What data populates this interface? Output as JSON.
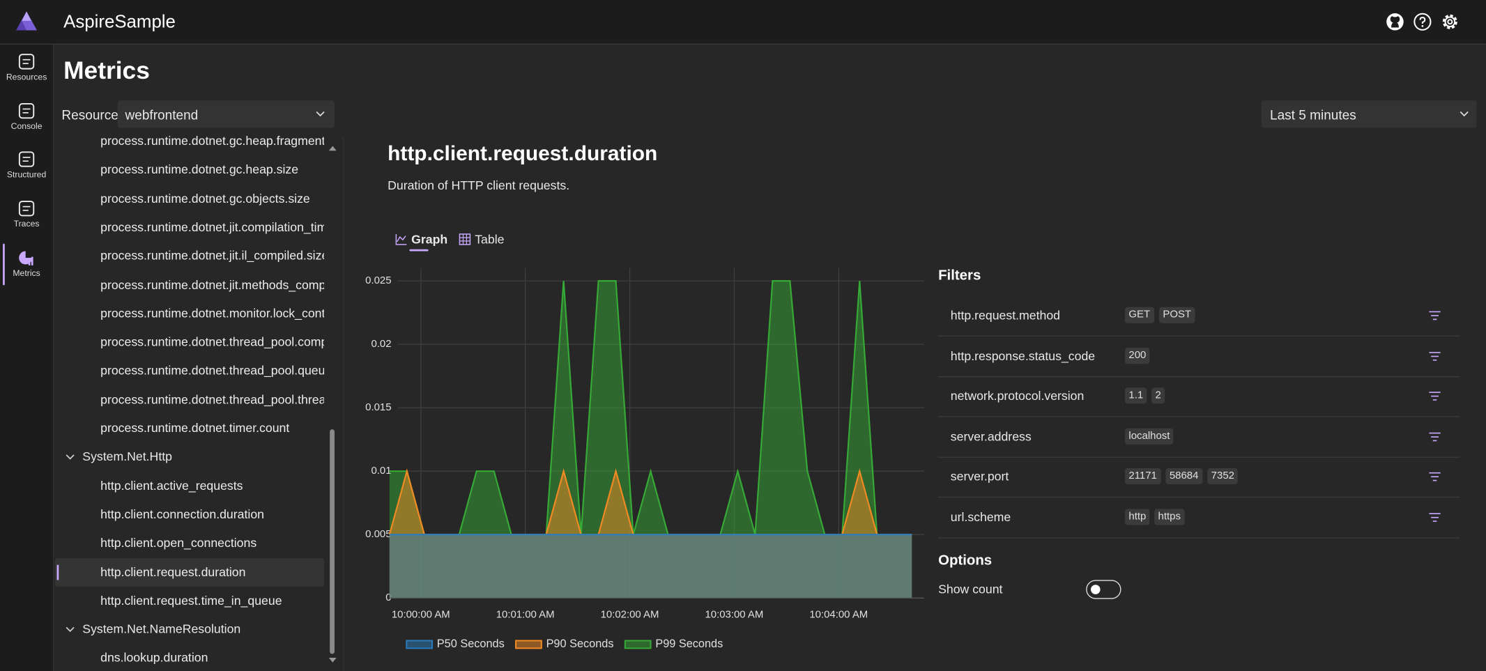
{
  "header": {
    "app_name": "AspireSample"
  },
  "nav": [
    {
      "label": "Resources"
    },
    {
      "label": "Console"
    },
    {
      "label": "Structured"
    },
    {
      "label": "Traces"
    },
    {
      "label": "Metrics",
      "active": true
    }
  ],
  "page_title": "Metrics",
  "resource": {
    "label": "Resource",
    "value": "webfrontend"
  },
  "time_range": "Last 5 minutes",
  "metrics_tree": [
    {
      "items": [
        {
          "text": "process.runtime.dotnet.gc.heap.fragmenta"
        },
        {
          "text": "process.runtime.dotnet.gc.heap.size"
        },
        {
          "text": "process.runtime.dotnet.gc.objects.size"
        },
        {
          "text": "process.runtime.dotnet.jit.compilation_tim"
        },
        {
          "text": "process.runtime.dotnet.jit.il_compiled.size"
        },
        {
          "text": "process.runtime.dotnet.jit.methods_compi"
        },
        {
          "text": "process.runtime.dotnet.monitor.lock_cont"
        },
        {
          "text": "process.runtime.dotnet.thread_pool.comp"
        },
        {
          "text": "process.runtime.dotnet.thread_pool.queu"
        },
        {
          "text": "process.runtime.dotnet.thread_pool.threa"
        },
        {
          "text": "process.runtime.dotnet.timer.count"
        }
      ]
    },
    {
      "name": "System.Net.Http",
      "items": [
        {
          "text": "http.client.active_requests"
        },
        {
          "text": "http.client.connection.duration"
        },
        {
          "text": "http.client.open_connections"
        },
        {
          "text": "http.client.request.duration",
          "selected": true
        },
        {
          "text": "http.client.request.time_in_queue"
        }
      ]
    },
    {
      "name": "System.Net.NameResolution",
      "items": [
        {
          "text": "dns.lookup.duration"
        }
      ]
    }
  ],
  "tabs": [
    {
      "label": "Graph",
      "active": true
    },
    {
      "label": "Table"
    }
  ],
  "chart_data": {
    "type": "area",
    "title": "http.client.request.duration",
    "subtitle": "Duration of HTTP client requests.",
    "x": [
      "9:59:42 AM",
      "9:59:52 AM",
      "10:00:02 AM",
      "10:00:12 AM",
      "10:00:22 AM",
      "10:00:32 AM",
      "10:00:42 AM",
      "10:00:52 AM",
      "10:01:02 AM",
      "10:01:12 AM",
      "10:01:22 AM",
      "10:01:32 AM",
      "10:01:42 AM",
      "10:01:52 AM",
      "10:02:02 AM",
      "10:02:12 AM",
      "10:02:22 AM",
      "10:02:32 AM",
      "10:02:42 AM",
      "10:02:52 AM",
      "10:03:02 AM",
      "10:03:12 AM",
      "10:03:22 AM",
      "10:03:32 AM",
      "10:03:42 AM",
      "10:03:52 AM",
      "10:04:02 AM",
      "10:04:12 AM",
      "10:04:22 AM",
      "10:04:32 AM",
      "10:04:42 AM"
    ],
    "series": [
      {
        "name": "P99 Seconds",
        "color": "#36a936",
        "values": [
          0.01,
          0.01,
          0.005,
          0.005,
          0.005,
          0.01,
          0.01,
          0.005,
          0.005,
          0.005,
          0.025,
          0.005,
          0.025,
          0.025,
          0.005,
          0.01,
          0.005,
          0.005,
          0.005,
          0.005,
          0.01,
          0.005,
          0.025,
          0.025,
          0.01,
          0.005,
          0.005,
          0.025,
          0.005,
          0.005,
          0.005
        ]
      },
      {
        "name": "P90 Seconds",
        "color": "#f28a24",
        "values": [
          0.005,
          0.01,
          0.005,
          0.005,
          0.005,
          0.005,
          0.005,
          0.005,
          0.005,
          0.005,
          0.01,
          0.005,
          0.005,
          0.01,
          0.005,
          0.005,
          0.005,
          0.005,
          0.005,
          0.005,
          0.005,
          0.005,
          0.005,
          0.005,
          0.005,
          0.005,
          0.005,
          0.01,
          0.005,
          0.005,
          0.005
        ]
      },
      {
        "name": "P50 Seconds",
        "color": "#2b7bba",
        "values": [
          0.005,
          0.005,
          0.005,
          0.005,
          0.005,
          0.005,
          0.005,
          0.005,
          0.005,
          0.005,
          0.005,
          0.005,
          0.005,
          0.005,
          0.005,
          0.005,
          0.005,
          0.005,
          0.005,
          0.005,
          0.005,
          0.005,
          0.005,
          0.005,
          0.005,
          0.005,
          0.005,
          0.005,
          0.005,
          0.005,
          0.005
        ]
      }
    ],
    "legend_order": [
      2,
      1,
      0
    ],
    "xlim": [
      "9:59:42 AM",
      "10:04:49 AM"
    ],
    "xticks": [
      "10:00:00 AM",
      "10:01:00 AM",
      "10:02:00 AM",
      "10:03:00 AM",
      "10:04:00 AM"
    ],
    "ylim": [
      0,
      0.026
    ],
    "yticks": [
      0,
      0.005,
      0.01,
      0.015,
      0.02,
      0.025
    ],
    "grid": true,
    "legend": "bottom"
  },
  "filters": {
    "title": "Filters",
    "rows": [
      {
        "name": "http.request.method",
        "values": [
          "GET",
          "POST"
        ]
      },
      {
        "name": "http.response.status_code",
        "values": [
          "200"
        ]
      },
      {
        "name": "network.protocol.version",
        "values": [
          "1.1",
          "2"
        ]
      },
      {
        "name": "server.address",
        "values": [
          "localhost"
        ]
      },
      {
        "name": "server.port",
        "values": [
          "21171",
          "58684",
          "7352"
        ]
      },
      {
        "name": "url.scheme",
        "values": [
          "http",
          "https"
        ]
      }
    ]
  },
  "options": {
    "title": "Options",
    "show_count": {
      "label": "Show count",
      "checked": false
    }
  }
}
